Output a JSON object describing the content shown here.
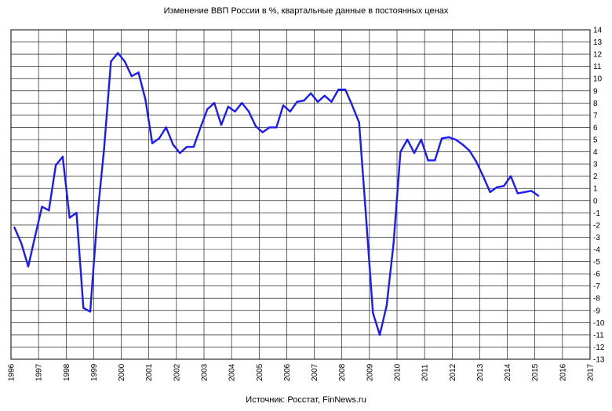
{
  "chart_data": {
    "type": "line",
    "title": "Изменение ВВП России в %, квартальные данные в постоянных ценах",
    "source": "Источник: Росстат, FinNews.ru",
    "xlabel": "",
    "ylabel": "",
    "xlim": [
      1996,
      2017
    ],
    "ylim": [
      -13,
      14
    ],
    "x_ticks": [
      "1996",
      "1997",
      "1998",
      "1999",
      "2000",
      "2001",
      "2002",
      "2003",
      "2004",
      "2005",
      "2006",
      "2007",
      "2008",
      "2009",
      "2010",
      "2011",
      "2012",
      "2013",
      "2014",
      "2015",
      "2016",
      "2017"
    ],
    "y_ticks": [
      "14",
      "13",
      "12",
      "11",
      "10",
      "9",
      "8",
      "7",
      "6",
      "5",
      "4",
      "3",
      "2",
      "1",
      "0",
      "-1",
      "-2",
      "-3",
      "-4",
      "-5",
      "-6",
      "-7",
      "-8",
      "-9",
      "-10",
      "-11",
      "-12",
      "-13"
    ],
    "grid": true,
    "line_color": "#1a1aff",
    "series": [
      {
        "x": [
          1996.125,
          1996.375,
          1996.625,
          1996.875,
          1997.125,
          1997.375,
          1997.625,
          1997.875,
          1998.125,
          1998.375,
          1998.625,
          1998.875,
          1999.125,
          1999.375,
          1999.625,
          1999.875,
          2000.125,
          2000.375,
          2000.625,
          2000.875,
          2001.125,
          2001.375,
          2001.625,
          2001.875,
          2002.125,
          2002.375,
          2002.625,
          2002.875,
          2003.125,
          2003.375,
          2003.625,
          2003.875,
          2004.125,
          2004.375,
          2004.625,
          2004.875,
          2005.125,
          2005.375,
          2005.625,
          2005.875,
          2006.125,
          2006.375,
          2006.625,
          2006.875,
          2007.125,
          2007.375,
          2007.625,
          2007.875,
          2008.125,
          2008.375,
          2008.625,
          2008.875,
          2009.125,
          2009.375,
          2009.625,
          2009.875,
          2010.125,
          2010.375,
          2010.625,
          2010.875,
          2011.125,
          2011.375,
          2011.625,
          2011.875,
          2012.125,
          2012.375,
          2012.625,
          2012.875,
          2013.125,
          2013.375,
          2013.625,
          2013.875,
          2014.125,
          2014.375,
          2014.625,
          2014.875,
          2015.125
        ],
        "y": [
          -2.2,
          -3.5,
          -5.4,
          -2.9,
          -0.5,
          -0.8,
          2.9,
          3.6,
          -1.4,
          -1.0,
          -8.8,
          -9.1,
          -1.5,
          4.2,
          11.4,
          12.1,
          11.4,
          10.2,
          10.5,
          8.3,
          4.7,
          5.1,
          6.0,
          4.6,
          3.9,
          4.4,
          4.4,
          6.0,
          7.5,
          8.0,
          6.2,
          7.7,
          7.3,
          8.0,
          7.3,
          6.1,
          5.6,
          6.0,
          6.0,
          7.8,
          7.3,
          8.1,
          8.2,
          8.8,
          8.1,
          8.6,
          8.1,
          9.1,
          9.1,
          7.8,
          6.4,
          -1.3,
          -9.2,
          -11.0,
          -8.6,
          -3.5,
          4.0,
          5.0,
          3.9,
          5.0,
          3.3,
          3.3,
          5.1,
          5.2,
          5.0,
          4.6,
          4.1,
          3.2,
          2.0,
          0.7,
          1.1,
          1.2,
          2.0,
          0.6,
          0.7,
          0.8,
          0.4
        ]
      }
    ]
  }
}
